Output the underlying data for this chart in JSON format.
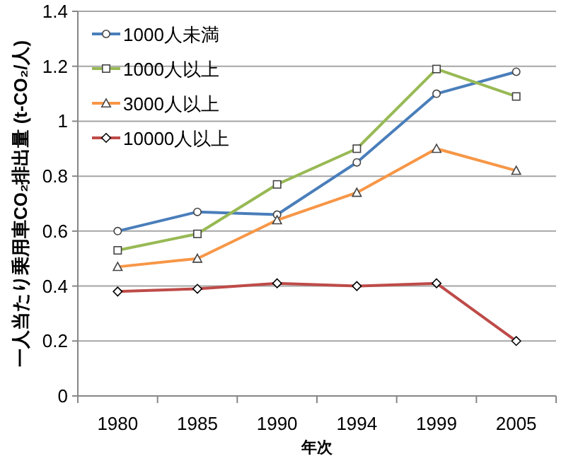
{
  "chart_data": {
    "type": "line",
    "xlabel": "年次",
    "ylabel": "一人当たり乗用車CO₂排出量 (t-CO₂/人)",
    "categories": [
      "1980",
      "1985",
      "1990",
      "1994",
      "1999",
      "2005"
    ],
    "ylim": [
      0,
      1.4
    ],
    "yticks": [
      0,
      0.2,
      0.4,
      0.6,
      0.8,
      1,
      1.2,
      1.4
    ],
    "grid": "y",
    "legend": "top left",
    "line_style": "solid",
    "series": [
      {
        "name": "1000人未満",
        "color": "#4a7ebb",
        "marker": "circle",
        "values": [
          0.6,
          0.67,
          0.66,
          0.85,
          1.1,
          1.18
        ]
      },
      {
        "name": "1000人以上",
        "color": "#98b954",
        "marker": "square",
        "values": [
          0.53,
          0.59,
          0.77,
          0.9,
          1.19,
          1.09
        ]
      },
      {
        "name": "3000人以上",
        "color": "#f79646",
        "marker": "triangle",
        "values": [
          0.47,
          0.5,
          0.64,
          0.74,
          0.9,
          0.82
        ]
      },
      {
        "name": "10000人以上",
        "color": "#be4b48",
        "marker": "diamond",
        "values": [
          0.38,
          0.39,
          0.41,
          0.4,
          0.41,
          0.2
        ]
      }
    ]
  }
}
